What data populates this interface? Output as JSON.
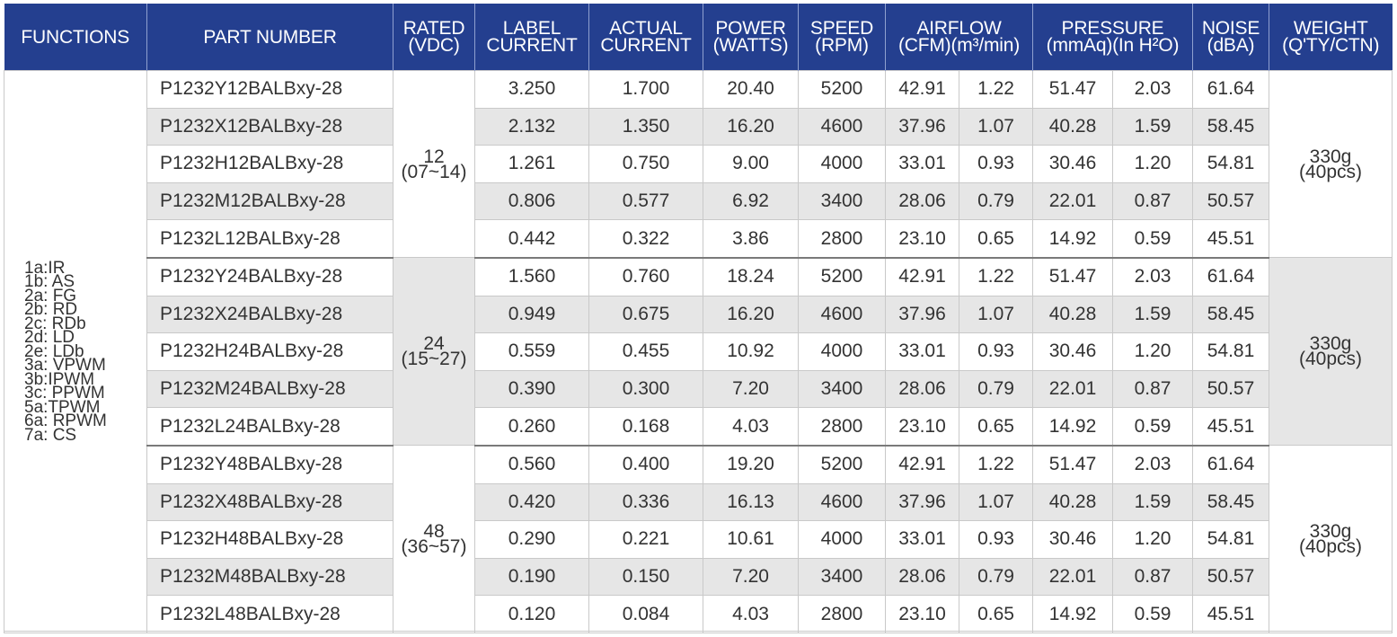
{
  "colors": {
    "header_bg": "#243f8f",
    "header_text": "#ffffff",
    "alt_row": "#e6e6e6",
    "text": "#333333"
  },
  "headers": {
    "functions": "FUNCTIONS",
    "part_number": "PART NUMBER",
    "rated": [
      "RATED",
      "(VDC)"
    ],
    "label_current": [
      "LABEL",
      "CURRENT"
    ],
    "actual_current": [
      "ACTUAL",
      "CURRENT"
    ],
    "power": [
      "POWER",
      "(WATTS)"
    ],
    "speed": [
      "SPEED",
      "(RPM)"
    ],
    "airflow": [
      "AIRFLOW",
      "(CFM)(m³/min)"
    ],
    "pressure": [
      "PRESSURE",
      "(mmAq)(In H²O)"
    ],
    "noise": [
      "NOISE",
      "(dBA)"
    ],
    "weight": [
      "WEIGHT",
      "(Q'TY/CTN)"
    ]
  },
  "functions": [
    "1a:IR",
    "1b: AS",
    "2a: FG",
    "2b: RD",
    "2c: RDb",
    "2d: LD",
    "2e: LDb",
    "3a: VPWM",
    "3b:IPWM",
    "3c: PPWM",
    "5a:TPWM",
    "6a: RPWM",
    "7a: CS"
  ],
  "groups": [
    {
      "rated": [
        "12",
        "(07~14)"
      ],
      "weight": [
        "330g",
        "(40pcs)"
      ],
      "rows": [
        [
          "P1232Y12BALBxy-28",
          "3.250",
          "1.700",
          "20.40",
          "5200",
          "42.91",
          "1.22",
          "51.47",
          "2.03",
          "61.64"
        ],
        [
          "P1232X12BALBxy-28",
          "2.132",
          "1.350",
          "16.20",
          "4600",
          "37.96",
          "1.07",
          "40.28",
          "1.59",
          "58.45"
        ],
        [
          "P1232H12BALBxy-28",
          "1.261",
          "0.750",
          "9.00",
          "4000",
          "33.01",
          "0.93",
          "30.46",
          "1.20",
          "54.81"
        ],
        [
          "P1232M12BALBxy-28",
          "0.806",
          "0.577",
          "6.92",
          "3400",
          "28.06",
          "0.79",
          "22.01",
          "0.87",
          "50.57"
        ],
        [
          "P1232L12BALBxy-28",
          "0.442",
          "0.322",
          "3.86",
          "2800",
          "23.10",
          "0.65",
          "14.92",
          "0.59",
          "45.51"
        ]
      ]
    },
    {
      "rated": [
        "24",
        "(15~27)"
      ],
      "weight": [
        "330g",
        "(40pcs)"
      ],
      "rows": [
        [
          "P1232Y24BALBxy-28",
          "1.560",
          "0.760",
          "18.24",
          "5200",
          "42.91",
          "1.22",
          "51.47",
          "2.03",
          "61.64"
        ],
        [
          "P1232X24BALBxy-28",
          "0.949",
          "0.675",
          "16.20",
          "4600",
          "37.96",
          "1.07",
          "40.28",
          "1.59",
          "58.45"
        ],
        [
          "P1232H24BALBxy-28",
          "0.559",
          "0.455",
          "10.92",
          "4000",
          "33.01",
          "0.93",
          "30.46",
          "1.20",
          "54.81"
        ],
        [
          "P1232M24BALBxy-28",
          "0.390",
          "0.300",
          "7.20",
          "3400",
          "28.06",
          "0.79",
          "22.01",
          "0.87",
          "50.57"
        ],
        [
          "P1232L24BALBxy-28",
          "0.260",
          "0.168",
          "4.03",
          "2800",
          "23.10",
          "0.65",
          "14.92",
          "0.59",
          "45.51"
        ]
      ]
    },
    {
      "rated": [
        "48",
        "(36~57)"
      ],
      "weight": [
        "330g",
        "(40pcs)"
      ],
      "rows": [
        [
          "P1232Y48BALBxy-28",
          "0.560",
          "0.400",
          "19.20",
          "5200",
          "42.91",
          "1.22",
          "51.47",
          "2.03",
          "61.64"
        ],
        [
          "P1232X48BALBxy-28",
          "0.420",
          "0.336",
          "16.13",
          "4600",
          "37.96",
          "1.07",
          "40.28",
          "1.59",
          "58.45"
        ],
        [
          "P1232H48BALBxy-28",
          "0.290",
          "0.221",
          "10.61",
          "4000",
          "33.01",
          "0.93",
          "30.46",
          "1.20",
          "54.81"
        ],
        [
          "P1232M48BALBxy-28",
          "0.190",
          "0.150",
          "7.20",
          "3400",
          "28.06",
          "0.79",
          "22.01",
          "0.87",
          "50.57"
        ],
        [
          "P1232L48BALBxy-28",
          "0.120",
          "0.084",
          "4.03",
          "2800",
          "23.10",
          "0.65",
          "14.92",
          "0.59",
          "45.51"
        ]
      ]
    }
  ]
}
